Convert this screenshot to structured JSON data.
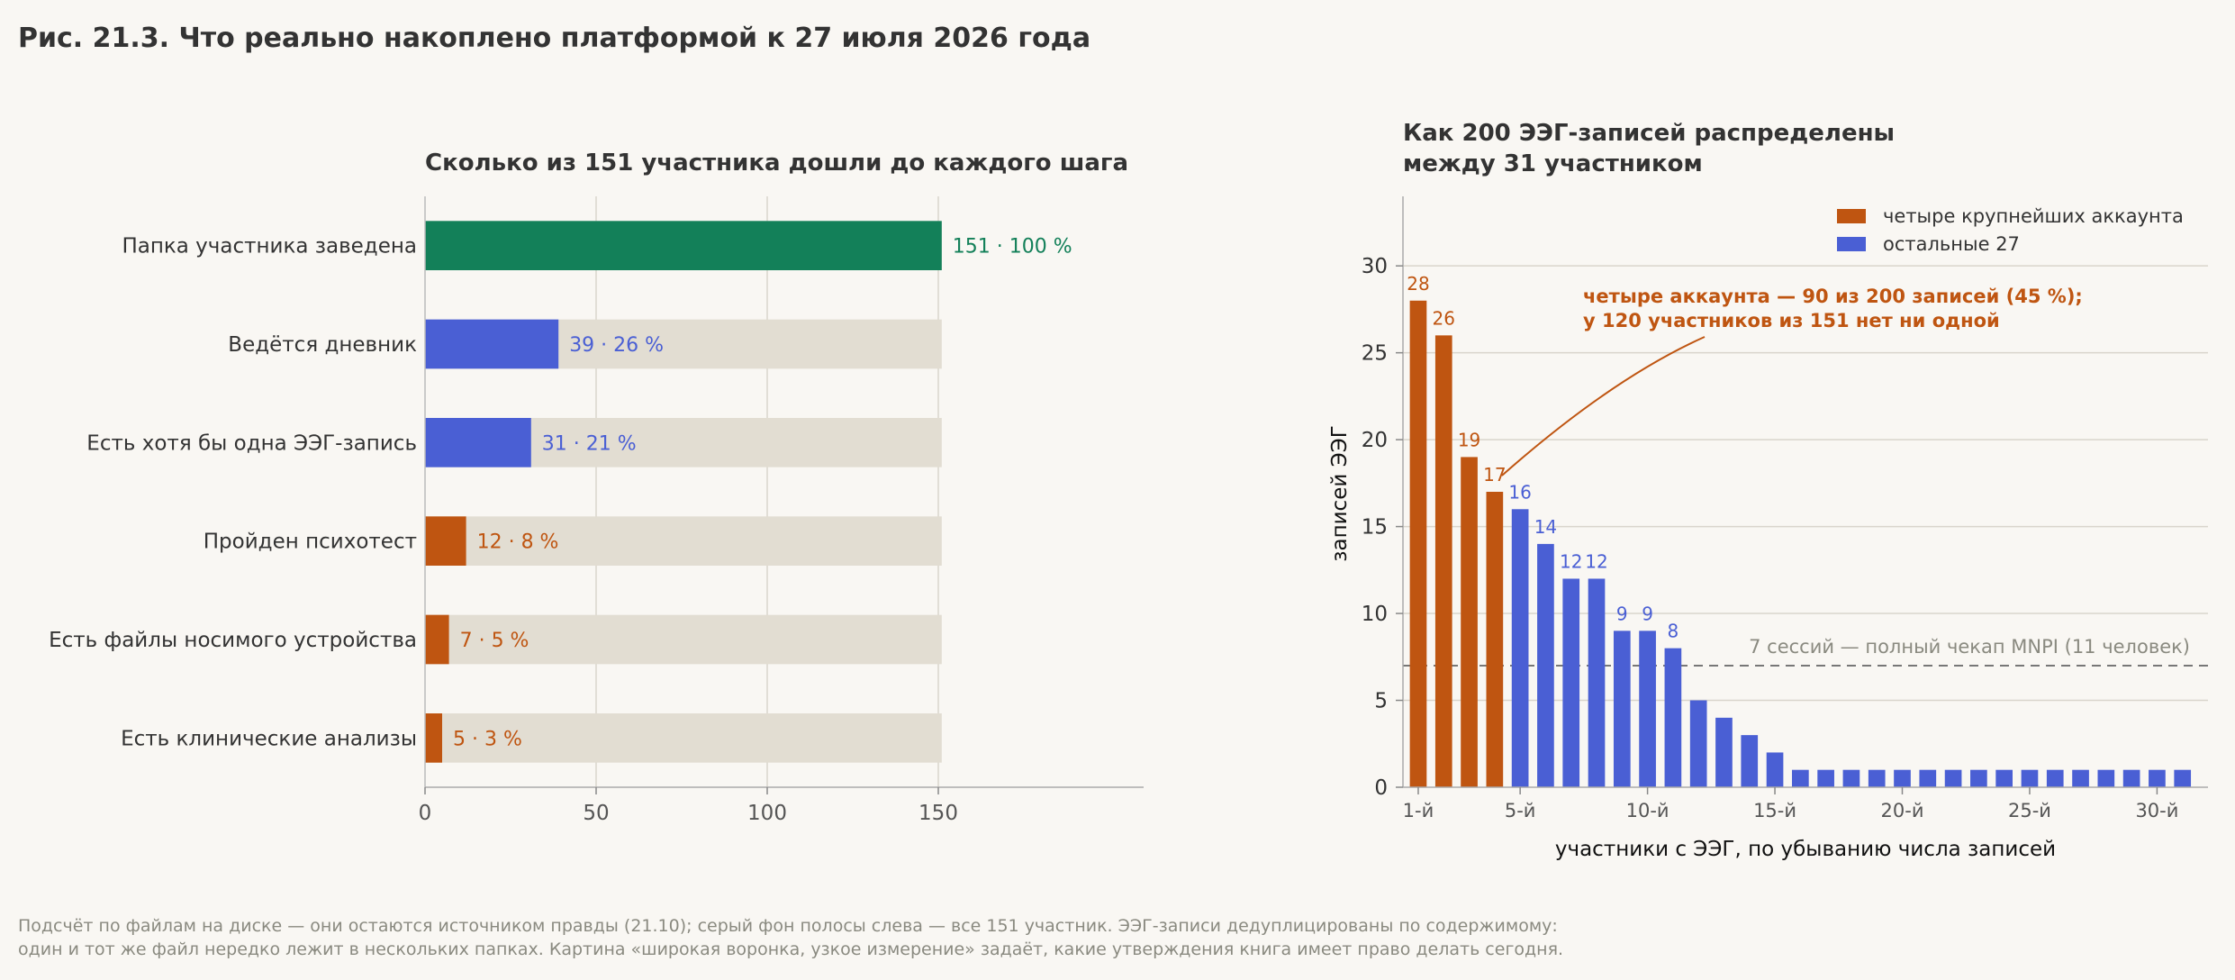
{
  "figure": {
    "title": "Рис. 21.3. Что реально накоплено платформой к 27 июля 2026 года",
    "footnote": [
      "Подсчёт по файлам на диске — они остаются источником правды (21.10); серый фон полосы слева — все 151 участник. ЭЭГ-записи дедуплицированы по содержимому:",
      "один и тот же файл нередко лежит в нескольких папках. Картина «широкая воронка, узкое измерение» задаёт, какие утверждения книга имеет право делать сегодня."
    ]
  },
  "colors": {
    "green": "#138059",
    "blue": "#4a5fd4",
    "orange": "#bf5511",
    "track": "#e2ddd2",
    "grid": "#d9d5cc",
    "text": "#333333",
    "muted": "#888888"
  },
  "chart_data": [
    {
      "type": "bar",
      "orientation": "horizontal",
      "title": "Сколько из 151 участника дошли до каждого шага",
      "categories": [
        "Папка участника заведена",
        "Ведётся дневник",
        "Есть хотя бы одна ЭЭГ-запись",
        "Пройден психотест",
        "Есть файлы носимого устройства",
        "Есть клинические анализы"
      ],
      "values": [
        151,
        39,
        31,
        12,
        7,
        5
      ],
      "value_labels": [
        "151  ·  100 %",
        "39  ·  26 %",
        "31  ·  21 %",
        "12  ·  8 %",
        "7  ·  5 %",
        "5  ·  3 %"
      ],
      "bar_colors": [
        "green",
        "blue",
        "blue",
        "orange",
        "orange",
        "orange"
      ],
      "background_total": 151,
      "xlim": [
        0,
        210
      ],
      "xticks": [
        0,
        50,
        100,
        150
      ],
      "grid": "vertical"
    },
    {
      "type": "bar",
      "title": "Как 200 ЭЭГ-записей распределены\nмежду 31 участником",
      "xlabel": "участники с ЭЭГ, по убыванию числа записей",
      "ylabel": "записей ЭЭГ",
      "x": [
        1,
        2,
        3,
        4,
        5,
        6,
        7,
        8,
        9,
        10,
        11,
        12,
        13,
        14,
        15,
        16,
        17,
        18,
        19,
        20,
        21,
        22,
        23,
        24,
        25,
        26,
        27,
        28,
        29,
        30,
        31
      ],
      "values": [
        28,
        26,
        19,
        17,
        16,
        14,
        12,
        12,
        9,
        9,
        8,
        5,
        4,
        3,
        2,
        1,
        1,
        1,
        1,
        1,
        1,
        1,
        1,
        1,
        1,
        1,
        1,
        1,
        1,
        1,
        1
      ],
      "labeled_count": 11,
      "highlight_count": 4,
      "xticks": [
        1,
        5,
        10,
        15,
        20,
        25,
        30
      ],
      "xtick_labels": [
        "1-й",
        "5-й",
        "10-й",
        "15-й",
        "20-й",
        "25-й",
        "30-й"
      ],
      "xlim": [
        0.4,
        32.0
      ],
      "ylim": [
        0,
        34
      ],
      "yticks": [
        0,
        5,
        10,
        15,
        20,
        25,
        30
      ],
      "grid": "horizontal",
      "legend": {
        "position": "top-right",
        "entries": [
          {
            "label": "четыре крупнейших аккаунта",
            "color": "orange"
          },
          {
            "label": "остальные 27",
            "color": "blue"
          }
        ]
      },
      "reference_line": {
        "y": 7,
        "label": "7 сессий — полный чекап MNPI (11 человек)"
      },
      "annotation": {
        "lines": [
          "четыре аккаунта — 90 из 200 записей (45 %);",
          "у 120 участников из 151 нет ни одной"
        ],
        "target_x": 4,
        "target_y": 17
      }
    }
  ]
}
